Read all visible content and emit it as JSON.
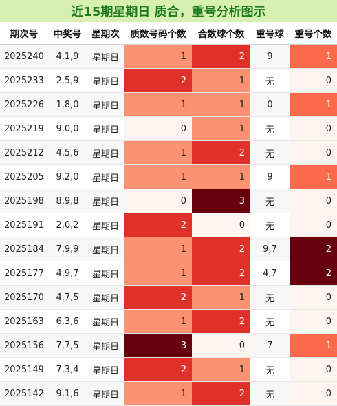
{
  "title": "近15期星期日 质合，重号分析图示",
  "columns": [
    "期次号",
    "中奖号",
    "星期次",
    "质数号码个数",
    "合数球个数",
    "重号球",
    "重号个数"
  ],
  "colors": {
    "v0": "#fff5f0",
    "v1": "#fc9272",
    "v2": "#e0302a",
    "v3": "#67000d",
    "rep1": "#fb6a4a",
    "rep2": "#67000d"
  },
  "rows": [
    {
      "issue": "2025240",
      "numbers": "4,1,9",
      "weekday": "星期日",
      "prime": 1,
      "composite": 2,
      "repeat_balls": "9",
      "repeat_count": 1
    },
    {
      "issue": "2025233",
      "numbers": "2,5,9",
      "weekday": "星期日",
      "prime": 2,
      "composite": 1,
      "repeat_balls": "无",
      "repeat_count": 0
    },
    {
      "issue": "2025226",
      "numbers": "1,8,0",
      "weekday": "星期日",
      "prime": 1,
      "composite": 1,
      "repeat_balls": "0",
      "repeat_count": 1
    },
    {
      "issue": "2025219",
      "numbers": "9,0,0",
      "weekday": "星期日",
      "prime": 0,
      "composite": 1,
      "repeat_balls": "无",
      "repeat_count": 0
    },
    {
      "issue": "2025212",
      "numbers": "4,5,6",
      "weekday": "星期日",
      "prime": 1,
      "composite": 2,
      "repeat_balls": "无",
      "repeat_count": 0
    },
    {
      "issue": "2025205",
      "numbers": "9,2,0",
      "weekday": "星期日",
      "prime": 1,
      "composite": 1,
      "repeat_balls": "9",
      "repeat_count": 1
    },
    {
      "issue": "2025198",
      "numbers": "8,9,8",
      "weekday": "星期日",
      "prime": 0,
      "composite": 3,
      "repeat_balls": "无",
      "repeat_count": 0
    },
    {
      "issue": "2025191",
      "numbers": "2,0,2",
      "weekday": "星期日",
      "prime": 2,
      "composite": 0,
      "repeat_balls": "无",
      "repeat_count": 0
    },
    {
      "issue": "2025184",
      "numbers": "7,9,9",
      "weekday": "星期日",
      "prime": 1,
      "composite": 2,
      "repeat_balls": "9,7",
      "repeat_count": 2
    },
    {
      "issue": "2025177",
      "numbers": "4,9,7",
      "weekday": "星期日",
      "prime": 1,
      "composite": 2,
      "repeat_balls": "4,7",
      "repeat_count": 2
    },
    {
      "issue": "2025170",
      "numbers": "4,7,5",
      "weekday": "星期日",
      "prime": 2,
      "composite": 1,
      "repeat_balls": "无",
      "repeat_count": 0
    },
    {
      "issue": "2025163",
      "numbers": "6,3,6",
      "weekday": "星期日",
      "prime": 1,
      "composite": 2,
      "repeat_balls": "无",
      "repeat_count": 0
    },
    {
      "issue": "2025156",
      "numbers": "7,7,5",
      "weekday": "星期日",
      "prime": 3,
      "composite": 0,
      "repeat_balls": "7",
      "repeat_count": 1
    },
    {
      "issue": "2025149",
      "numbers": "7,3,4",
      "weekday": "星期日",
      "prime": 2,
      "composite": 1,
      "repeat_balls": "无",
      "repeat_count": 0
    },
    {
      "issue": "2025142",
      "numbers": "9,1,6",
      "weekday": "星期日",
      "prime": 1,
      "composite": 2,
      "repeat_balls": "无",
      "repeat_count": 0
    }
  ]
}
